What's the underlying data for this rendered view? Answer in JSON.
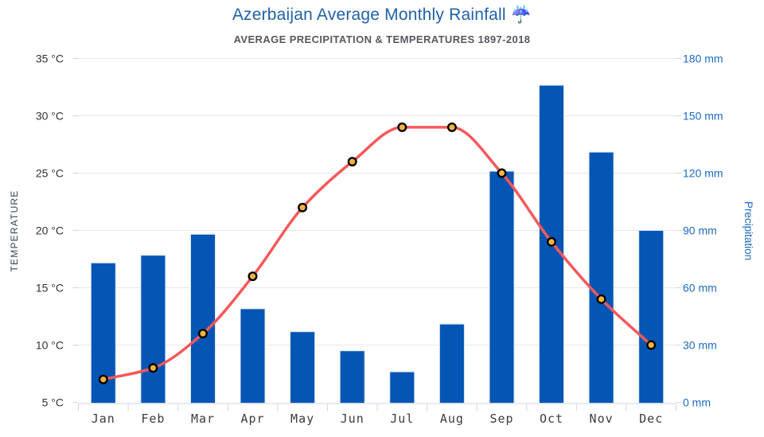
{
  "header": {
    "title": "Azerbaijan Average Monthly Rainfall ☔",
    "subtitle": "AVERAGE PRECIPITATION & TEMPERATURES 1897-2018"
  },
  "chart_data": {
    "type": "bar",
    "subtype": "column + spline combo, dual y-axis",
    "title": "Azerbaijan Average Monthly Rainfall",
    "subtitle": "AVERAGE PRECIPITATION & TEMPERATURES 1897-2018",
    "categories": [
      "Jan",
      "Feb",
      "Mar",
      "Apr",
      "May",
      "Jun",
      "Jul",
      "Aug",
      "Sep",
      "Oct",
      "Nov",
      "Dec"
    ],
    "series": [
      {
        "name": "Precipitation",
        "type": "bar",
        "unit": "mm",
        "axis": "right",
        "color": "#0455b4",
        "bar_border_color": "#d8e5f5",
        "values": [
          73,
          77,
          88,
          49,
          37,
          27,
          16,
          41,
          121,
          166,
          131,
          90
        ]
      },
      {
        "name": "Temperature",
        "type": "line",
        "unit": "°C",
        "axis": "left",
        "color": "#f4595b",
        "marker_fill": "#f3b43c",
        "marker_stroke": "#000000",
        "values": [
          7,
          8,
          11,
          16,
          22,
          26,
          29,
          29,
          25,
          19,
          14,
          10
        ]
      }
    ],
    "left_axis": {
      "title": "TEMPERATURE",
      "min": 5,
      "max": 35,
      "step": 5,
      "tick_labels": [
        "35 °C",
        "30 °C",
        "25 °C",
        "20 °C",
        "15 °C",
        "10 °C",
        "5 °C"
      ],
      "label_color": "#333333",
      "title_color": "#33475c"
    },
    "right_axis": {
      "title": "Precipitation",
      "min": 0,
      "max": 180,
      "step": 30,
      "tick_labels": [
        "180 mm",
        "150 mm",
        "120 mm",
        "90 mm",
        "60 mm",
        "30 mm",
        "0 mm"
      ],
      "label_color": "#1d6bc0",
      "title_color": "#1d6bc0"
    },
    "grid": true,
    "legend": false,
    "gridline_color": "#e7e7e7",
    "axis_line_color": "#ccd6eb"
  }
}
